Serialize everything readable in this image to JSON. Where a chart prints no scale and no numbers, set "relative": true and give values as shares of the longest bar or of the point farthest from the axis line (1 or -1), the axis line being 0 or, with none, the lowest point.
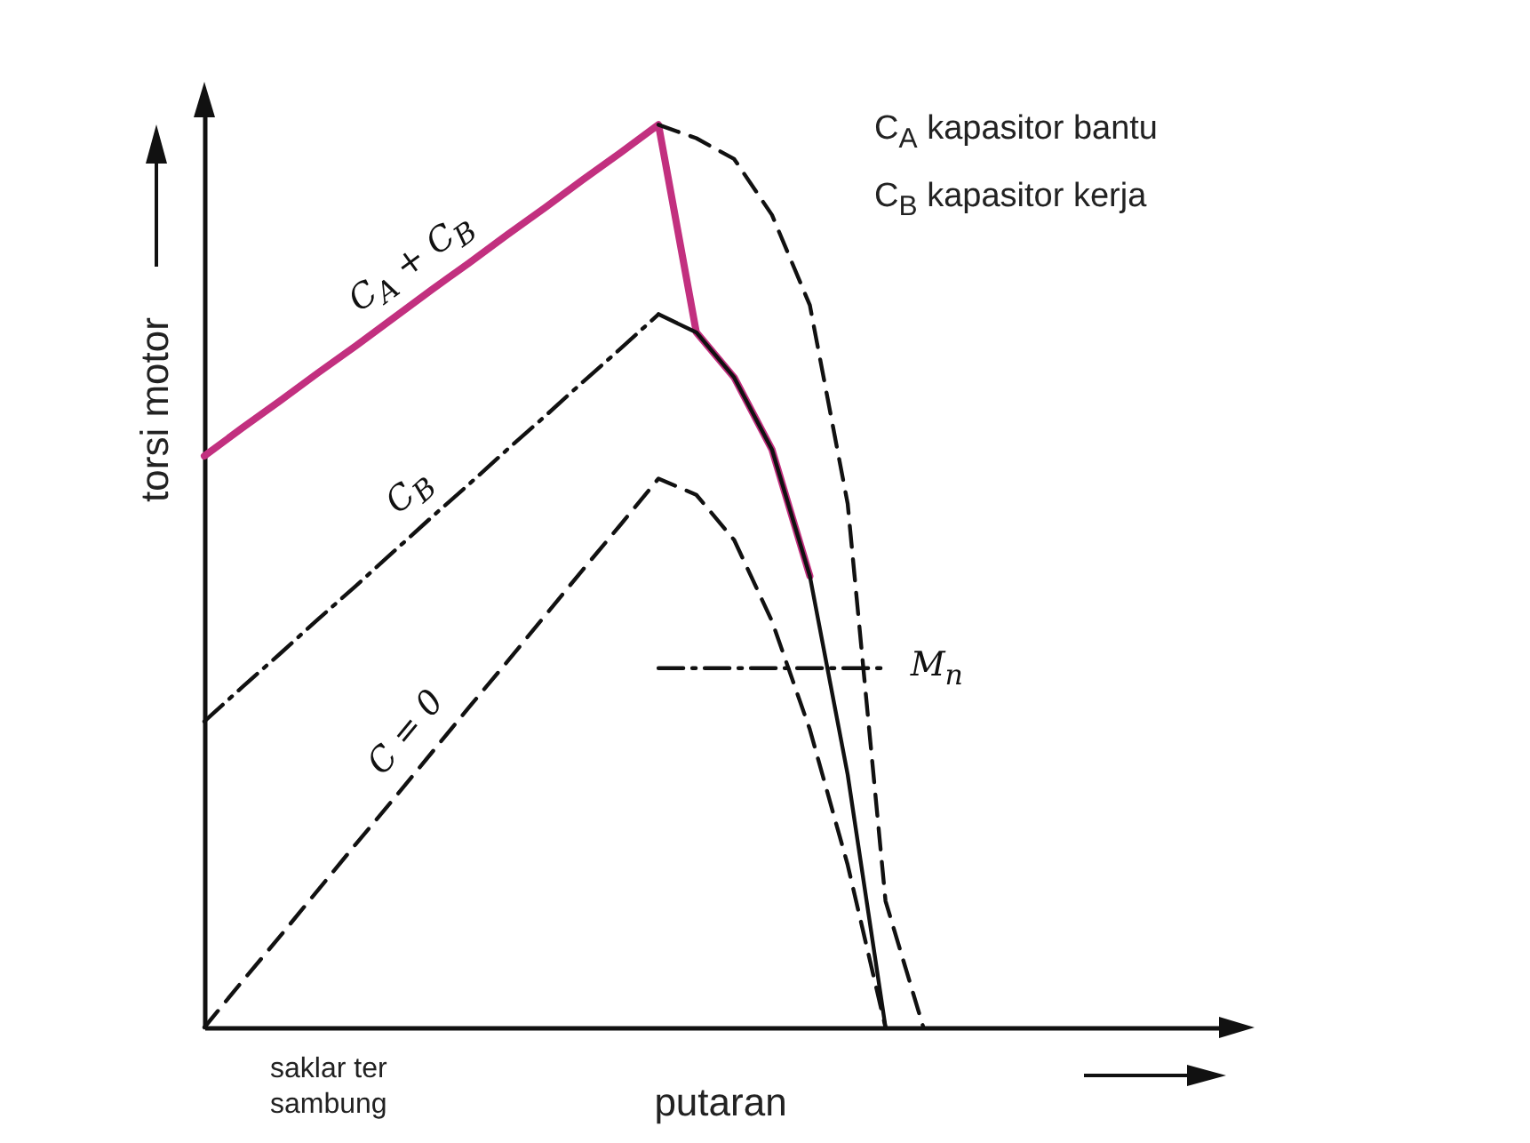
{
  "chart_data": {
    "type": "line",
    "relative": true,
    "xlabel": "putaran",
    "ylabel": "torsi motor",
    "categories": [
      null,
      null,
      null,
      null,
      null,
      null,
      null,
      null,
      null,
      null,
      null,
      null,
      null,
      null,
      null,
      null,
      null,
      null,
      null,
      null,
      null,
      null,
      null,
      null,
      null,
      null,
      null,
      null
    ],
    "series": [
      {
        "name": "C$_{A}$ + C$_{B}$",
        "color": "#c2307f",
        "line_style": "solid",
        "values": [
          0.633,
          0.664,
          0.694,
          0.725,
          0.755,
          0.786,
          0.817,
          0.847,
          0.878,
          0.908,
          0.939,
          0.969,
          1,
          0.77,
          0.72,
          0.64,
          0.5,
          null,
          null,
          null,
          null,
          null,
          null,
          null,
          null,
          null,
          null,
          null
        ]
      },
      {
        "color": "#111111",
        "line_style": "dashed",
        "values": [
          null,
          null,
          null,
          null,
          null,
          null,
          null,
          null,
          null,
          null,
          null,
          null,
          1,
          0.985,
          0.962,
          0.9,
          0.8,
          0.58,
          0.14,
          0,
          null,
          null,
          null,
          null,
          null,
          null,
          null,
          null
        ]
      },
      {
        "name": "C$_{B}$",
        "color": "#111111",
        "line_style": "dashdot",
        "values": [
          0.339,
          0.377,
          0.414,
          0.452,
          0.489,
          0.527,
          0.565,
          0.602,
          0.64,
          0.677,
          0.715,
          0.752,
          0.79,
          null,
          null,
          null,
          null,
          null,
          null,
          null,
          null,
          null,
          null,
          null,
          null,
          null,
          null,
          null
        ]
      },
      {
        "color": "#111111",
        "line_style": "solid",
        "values": [
          null,
          null,
          null,
          null,
          null,
          null,
          null,
          null,
          null,
          null,
          null,
          null,
          0.79,
          0.77,
          0.72,
          0.64,
          0.5,
          0.28,
          0,
          null,
          null,
          null,
          null,
          null,
          null,
          null,
          null,
          null
        ]
      },
      {
        "name": "C = 0",
        "color": "#111111",
        "line_style": "dashed",
        "values": [
          0,
          0.051,
          0.101,
          0.152,
          0.203,
          0.253,
          0.304,
          0.355,
          0.405,
          0.456,
          0.507,
          0.557,
          0.608,
          0.59,
          0.54,
          0.45,
          0.33,
          0.18,
          0,
          null,
          null,
          null,
          null,
          null,
          null,
          null,
          null,
          null
        ]
      },
      {
        "name": "M$_{n}$",
        "color": "#111111",
        "line_style": "dashdot",
        "values": [
          null,
          null,
          null,
          null,
          null,
          null,
          null,
          null,
          null,
          null,
          null,
          null,
          0.398,
          0.398,
          0.398,
          0.398,
          0.398,
          0.398,
          0.398,
          null,
          null,
          null,
          null,
          null,
          null,
          null,
          null,
          null
        ]
      }
    ],
    "annotations": [
      "C$_{A}$  kapasitor bantu",
      "C$_{B}$  kapasitor kerja",
      "saklar ter sambung"
    ]
  }
}
